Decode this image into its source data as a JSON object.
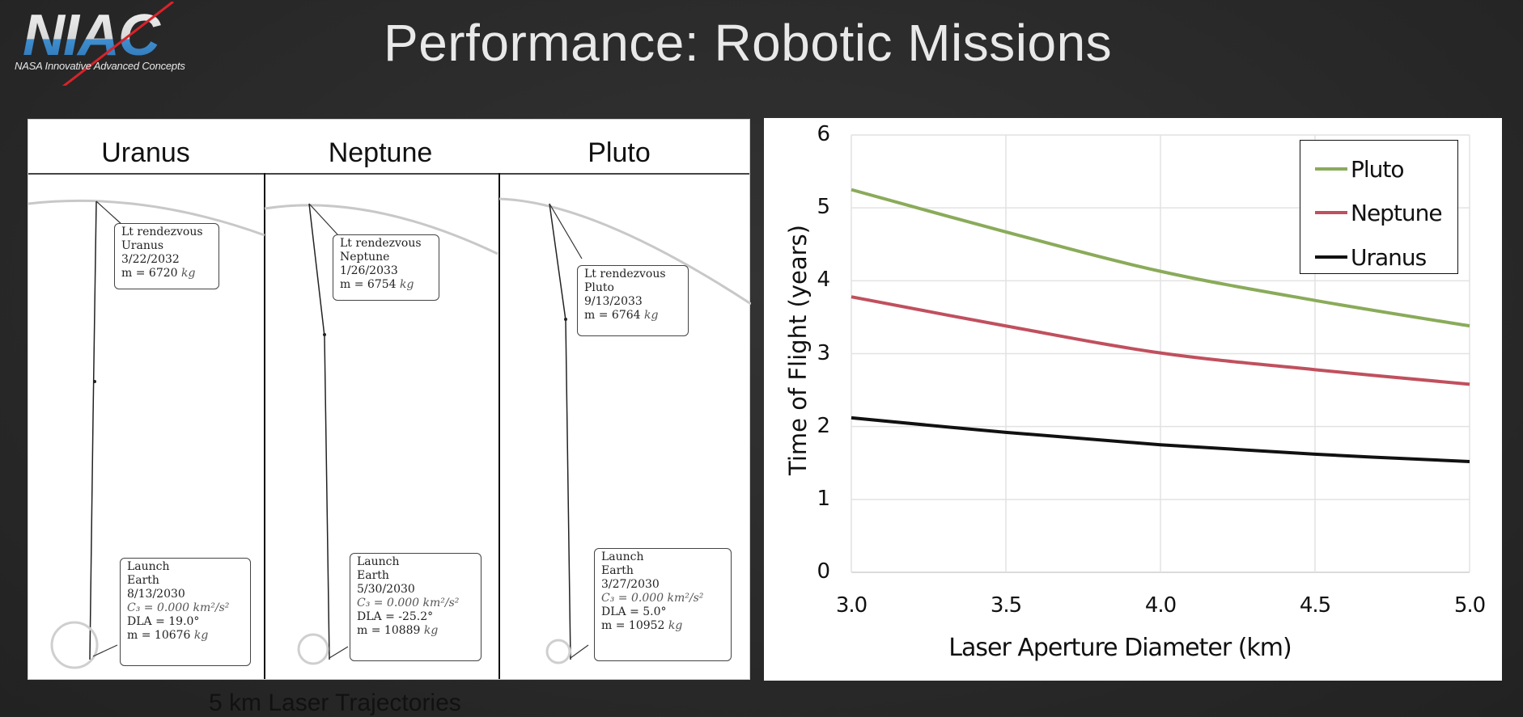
{
  "header": {
    "logo_text": "NIAC",
    "logo_subtitle": "NASA Innovative Advanced Concepts",
    "title": "Performance: Robotic Missions"
  },
  "trajectories": {
    "caption": "5 km Laser Trajectories",
    "columns": [
      {
        "title": "Uranus",
        "rendezvous": {
          "line1": "Lt rendezvous",
          "line2": "Uranus",
          "date": "3/22/2032",
          "mass_label": "m = 6720",
          "mass_unit": "kg"
        },
        "launch": {
          "line1": "Launch",
          "line2": "Earth",
          "date": "8/13/2030",
          "c3_label": "C₃ = 0.000",
          "c3_unit": "km²/s²",
          "dla": "DLA = 19.0°",
          "mass_label": "m = 10676",
          "mass_unit": "kg"
        }
      },
      {
        "title": "Neptune",
        "rendezvous": {
          "line1": "Lt rendezvous",
          "line2": "Neptune",
          "date": "1/26/2033",
          "mass_label": "m = 6754",
          "mass_unit": "kg"
        },
        "launch": {
          "line1": "Launch",
          "line2": "Earth",
          "date": "5/30/2030",
          "c3_label": "C₃ = 0.000",
          "c3_unit": "km²/s²",
          "dla": "DLA = -25.2°",
          "mass_label": "m = 10889",
          "mass_unit": "kg"
        }
      },
      {
        "title": "Pluto",
        "rendezvous": {
          "line1": "Lt rendezvous",
          "line2": "Pluto",
          "date": "9/13/2033",
          "mass_label": "m = 6764",
          "mass_unit": "kg"
        },
        "launch": {
          "line1": "Launch",
          "line2": "Earth",
          "date": "3/27/2030",
          "c3_label": "C₃ = 0.000",
          "c3_unit": "km²/s²",
          "dla": "DLA = 5.0°",
          "mass_label": "m = 10952",
          "mass_unit": "kg"
        }
      }
    ]
  },
  "chart": {
    "ytick_labels": [
      "0",
      "1",
      "2",
      "3",
      "4",
      "5",
      "6"
    ],
    "xtick_labels": [
      "3.0",
      "3.5",
      "4.0",
      "4.5",
      "5.0"
    ],
    "xlabel": "Laser Aperture Diameter (km)",
    "ylabel": "Time of Flight (years)",
    "legend": [
      {
        "name": "Pluto",
        "color": "#8aab5a"
      },
      {
        "name": "Neptune",
        "color": "#c0505e"
      },
      {
        "name": "Uranus",
        "color": "#111111"
      }
    ]
  },
  "chart_data": {
    "type": "line",
    "title": "",
    "xlabel": "Laser Aperture Diameter (km)",
    "ylabel": "Time of Flight (years)",
    "x": [
      3.0,
      3.5,
      4.0,
      4.5,
      5.0
    ],
    "series": [
      {
        "name": "Pluto",
        "color": "#8aab5a",
        "values": [
          5.25,
          4.67,
          4.13,
          3.73,
          3.38
        ]
      },
      {
        "name": "Neptune",
        "color": "#c0505e",
        "values": [
          3.78,
          3.38,
          3.01,
          2.78,
          2.58
        ]
      },
      {
        "name": "Uranus",
        "color": "#111111",
        "values": [
          2.12,
          1.92,
          1.75,
          1.62,
          1.52
        ]
      }
    ],
    "xlim": [
      3.0,
      5.0
    ],
    "ylim": [
      0,
      6
    ],
    "xticks": [
      3.0,
      3.5,
      4.0,
      4.5,
      5.0
    ],
    "yticks": [
      0,
      1,
      2,
      3,
      4,
      5,
      6
    ],
    "grid": true,
    "legend_position": "upper right"
  }
}
